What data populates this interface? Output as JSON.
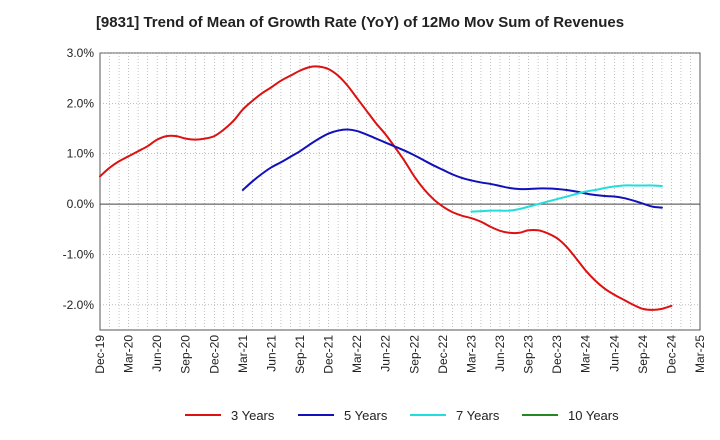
{
  "chart_data": {
    "type": "line",
    "title": "[9831]  Trend of Mean of Growth Rate (YoY) of 12Mo Mov Sum of Revenues",
    "xlabel": "",
    "ylabel": "",
    "ylim": [
      -2.5,
      3.0
    ],
    "y_ticks": [
      -2.0,
      -1.0,
      0.0,
      1.0,
      2.0,
      3.0
    ],
    "y_tick_labels": [
      "-2.0%",
      "-1.0%",
      "0.0%",
      "1.0%",
      "2.0%",
      "3.0%"
    ],
    "x_tick_labels": [
      "Dec-19",
      "Mar-20",
      "Jun-20",
      "Sep-20",
      "Dec-20",
      "Mar-21",
      "Jun-21",
      "Sep-21",
      "Dec-21",
      "Mar-22",
      "Jun-22",
      "Sep-22",
      "Dec-22",
      "Mar-23",
      "Jun-23",
      "Sep-23",
      "Dec-23",
      "Mar-24",
      "Jun-24",
      "Sep-24",
      "Dec-24",
      "Mar-25"
    ],
    "x_start": "Dec-19",
    "x_months": 63,
    "grid": true,
    "legend_position": "bottom",
    "series": [
      {
        "name": "3 Years",
        "color": "#dd1111",
        "start_index": 0,
        "values": [
          0.55,
          0.72,
          0.85,
          0.95,
          1.05,
          1.15,
          1.28,
          1.35,
          1.35,
          1.3,
          1.28,
          1.3,
          1.35,
          1.48,
          1.65,
          1.88,
          2.05,
          2.2,
          2.32,
          2.45,
          2.55,
          2.65,
          2.72,
          2.73,
          2.68,
          2.55,
          2.35,
          2.1,
          1.85,
          1.6,
          1.38,
          1.12,
          0.85,
          0.55,
          0.3,
          0.1,
          -0.05,
          -0.16,
          -0.23,
          -0.28,
          -0.35,
          -0.45,
          -0.53,
          -0.57,
          -0.57,
          -0.52,
          -0.52,
          -0.58,
          -0.68,
          -0.85,
          -1.08,
          -1.32,
          -1.52,
          -1.68,
          -1.8,
          -1.9,
          -2.0,
          -2.08,
          -2.1,
          -2.08,
          -2.02
        ]
      },
      {
        "name": "5 Years",
        "color": "#1111bb",
        "start_index": 15,
        "values": [
          0.28,
          0.45,
          0.6,
          0.73,
          0.83,
          0.94,
          1.05,
          1.18,
          1.3,
          1.4,
          1.46,
          1.48,
          1.45,
          1.38,
          1.3,
          1.22,
          1.14,
          1.06,
          0.97,
          0.87,
          0.77,
          0.68,
          0.59,
          0.52,
          0.47,
          0.43,
          0.4,
          0.36,
          0.32,
          0.3,
          0.3,
          0.31,
          0.31,
          0.3,
          0.28,
          0.25,
          0.21,
          0.18,
          0.16,
          0.15,
          0.12,
          0.07,
          0.01,
          -0.05,
          -0.07
        ]
      },
      {
        "name": "7 Years",
        "color": "#22dddd",
        "start_index": 39,
        "values": [
          -0.15,
          -0.14,
          -0.13,
          -0.13,
          -0.13,
          -0.1,
          -0.05,
          0.0,
          0.05,
          0.1,
          0.15,
          0.2,
          0.25,
          0.28,
          0.32,
          0.35,
          0.37,
          0.37,
          0.37,
          0.37,
          0.36
        ]
      },
      {
        "name": "10 Years",
        "color": "#228822",
        "start_index": 0,
        "values": []
      }
    ]
  }
}
